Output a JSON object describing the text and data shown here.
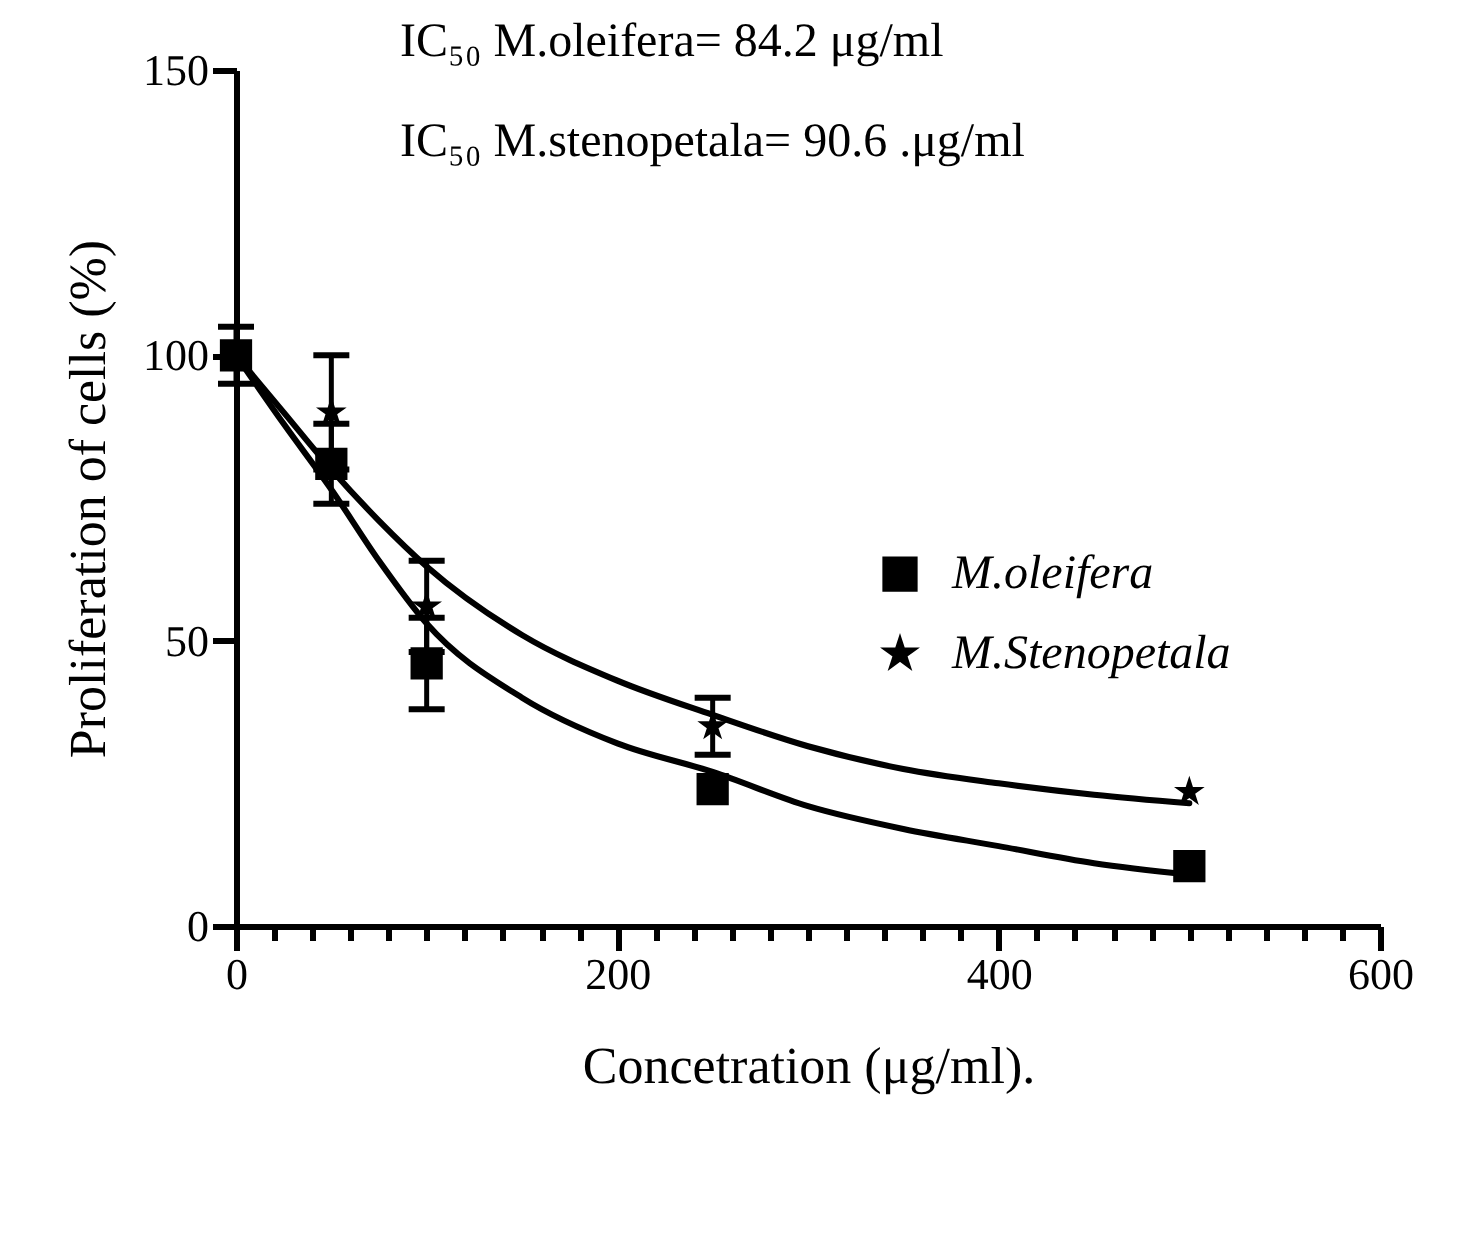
{
  "chart_data": {
    "type": "scatter",
    "xlabel": "Concetration (μg/ml).",
    "ylabel": "Proliferation of cells (%)",
    "annotations": [
      "IC₅₀ M.oleifera= 84.2 μg/ml",
      "IC₅₀ M.stenopetala= 90.6 .μg/ml"
    ],
    "xlim": [
      0,
      600
    ],
    "ylim": [
      0,
      150
    ],
    "xticks": [
      0,
      {
        "value": 20,
        "label": null
      },
      {
        "value": 40,
        "label": null
      },
      {
        "value": 60,
        "label": null
      },
      {
        "value": 80,
        "label": null
      },
      {
        "value": 100,
        "label": null
      },
      {
        "value": 120,
        "label": null
      },
      {
        "value": 140,
        "label": null
      },
      {
        "value": 160,
        "label": null
      },
      {
        "value": 180,
        "label": null
      },
      200,
      {
        "value": 220,
        "label": null
      },
      {
        "value": 240,
        "label": null
      },
      {
        "value": 260,
        "label": null
      },
      {
        "value": 280,
        "label": null
      },
      {
        "value": 300,
        "label": null
      },
      {
        "value": 320,
        "label": null
      },
      {
        "value": 340,
        "label": null
      },
      {
        "value": 360,
        "label": null
      },
      {
        "value": 380,
        "label": null
      },
      400,
      {
        "value": 420,
        "label": null
      },
      {
        "value": 440,
        "label": null
      },
      {
        "value": 460,
        "label": null
      },
      {
        "value": 480,
        "label": null
      },
      {
        "value": 500,
        "label": null
      },
      {
        "value": 520,
        "label": null
      },
      {
        "value": 540,
        "label": null
      },
      {
        "value": 560,
        "label": null
      },
      {
        "value": 580,
        "label": null
      },
      600
    ],
    "yticks": [
      0,
      50,
      100,
      150
    ],
    "grid": false,
    "legend": "right",
    "series": [
      {
        "name": "M.oleifera",
        "marker": "square",
        "color": "#000000",
        "x": [
          0,
          50,
          100,
          250,
          500
        ],
        "values": [
          100,
          81,
          46,
          24,
          10.5
        ],
        "errors": [
          5,
          7,
          8,
          null,
          null
        ]
      },
      {
        "name": "M.Stenopetala",
        "marker": "star",
        "color": "#000000",
        "x": [
          50,
          100,
          250,
          500
        ],
        "values": [
          90,
          56,
          35,
          23.5
        ],
        "errors": [
          10,
          8,
          5,
          null
        ]
      },
      {
        "type": "line",
        "color": "#000000",
        "x": [
          0,
          25,
          50,
          75,
          100,
          150,
          200,
          250,
          300,
          350,
          400,
          450,
          500
        ],
        "values": [
          100,
          88,
          76.5,
          64,
          53,
          40,
          32,
          27,
          21,
          17,
          14,
          11,
          9
        ]
      },
      {
        "type": "line",
        "color": "#000000",
        "x": [
          0,
          25,
          50,
          75,
          100,
          150,
          200,
          250,
          300,
          350,
          400,
          450,
          500
        ],
        "values": [
          100,
          90,
          80,
          71,
          63,
          51,
          43,
          37,
          31.5,
          27.5,
          25,
          23,
          21.5
        ]
      }
    ]
  }
}
